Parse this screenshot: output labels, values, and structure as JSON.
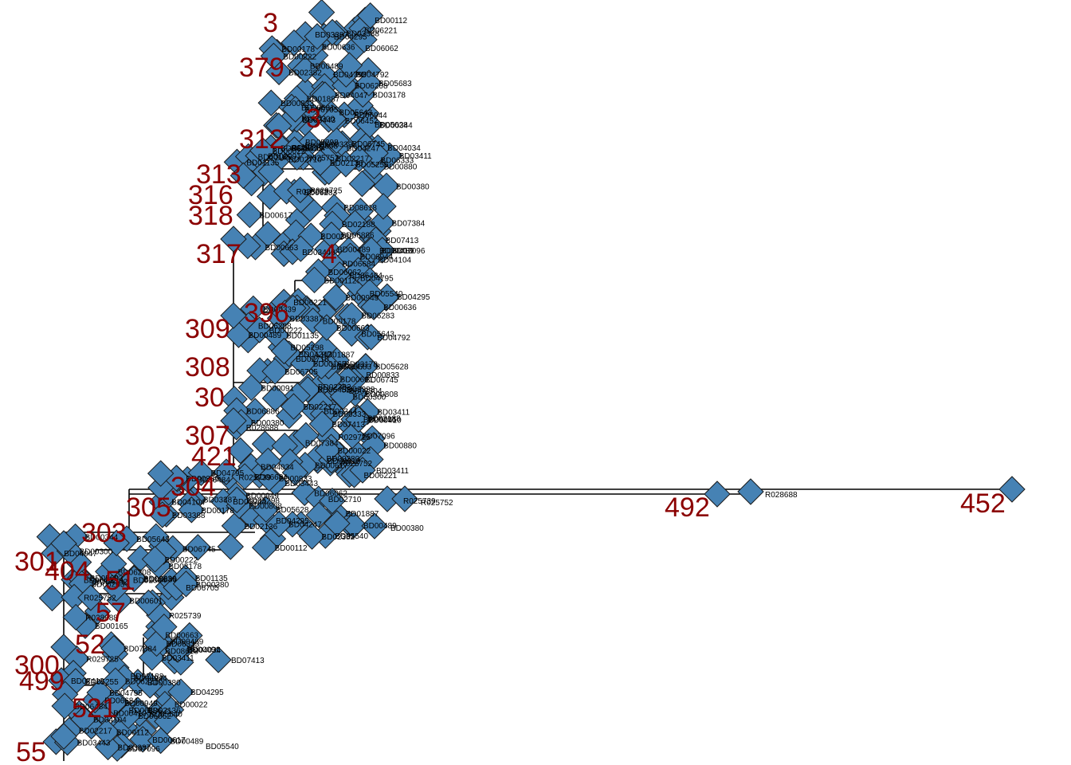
{
  "colors": {
    "node_fill": "#4682b4",
    "node_stroke": "#1a1a1a",
    "label_big": "#8b0000",
    "label_small": "#000000",
    "edge": "#000000"
  },
  "node_labels_large": [
    "492",
    "452",
    "309",
    "307",
    "308",
    "301",
    "300",
    "312",
    "313",
    "316",
    "318",
    "317",
    "396",
    "421",
    "304",
    "305",
    "303",
    "404",
    "499",
    "521",
    "51",
    "57",
    "52",
    "55",
    "379"
  ],
  "node_labels_small": [
    "BD06484",
    "BD03443",
    "BD06062",
    "BD06944",
    "BD06221",
    "BD03387",
    "BD04795",
    "BD00112",
    "BD04295",
    "BD00489",
    "BD00808",
    "BD01887",
    "BD02382",
    "BD02710",
    "BD03388",
    "BD05628",
    "BD00178",
    "BD00833",
    "BD05298",
    "BD00339",
    "BD04247",
    "BD05643",
    "BD06208",
    "BD02304",
    "BD06745",
    "BD00344",
    "BD00636",
    "BD03178",
    "BD06452",
    "BD04792",
    "BD00601",
    "BD05683",
    "BD04047",
    "BD00222",
    "BD00300",
    "BD06705",
    "BD01135",
    "BD00165",
    "BD00489",
    "BD06283",
    "BD00663",
    "BD00091",
    "BD08618",
    "BD03411",
    "R025739",
    "R025752",
    "R028688",
    "BD00380",
    "BD02188",
    "R029725",
    "BD06333",
    "BD04034",
    "BD00880",
    "BD07384",
    "BD00617",
    "BD02217",
    "BD06886",
    "BD00380",
    "BD07413",
    "BD05255",
    "BD07096",
    "BD00410",
    "BD00022",
    "BD02136",
    "BD06684",
    "BD00949",
    "BD04104",
    "BD05540"
  ]
}
